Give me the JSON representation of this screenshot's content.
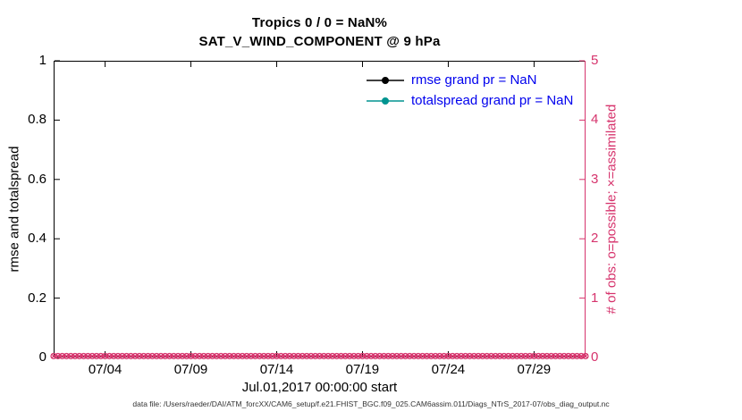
{
  "figure": {
    "title_line1": "Tropics 0 / 0 = NaN%",
    "title_line2": "SAT_V_WIND_COMPONENT @ 9 hPa",
    "xlabel": "Jul.01,2017 00:00:00 start",
    "ylabel_left": "rmse and totalspread",
    "ylabel_right": "# of obs: o=possible; ×=assimilated",
    "caption": "data file: /Users/raeder/DAI/ATM_forcXX/CAM6_setup/f.e21.FHIST_BGC.f09_025.CAM6assim.011/Diags_NTrS_2017-07/obs_diag_output.nc"
  },
  "legend": [
    {
      "label": "rmse grand pr = NaN",
      "color": "#000000"
    },
    {
      "label": "totalspread grand pr = NaN",
      "color": "#009490"
    }
  ],
  "colors": {
    "right_axis": "#d6336c",
    "marker_pink": "#d6336c",
    "legend_text": "#0000ee",
    "axis_black": "#000000"
  },
  "chart_data": {
    "type": "line",
    "title": "Tropics 0 / 0 = NaN%",
    "subtitle": "SAT_V_WIND_COMPONENT @ 9 hPa",
    "xlabel": "Jul.01,2017 00:00:00 start",
    "ylabel_left": "rmse and totalspread",
    "ylabel_right": "# of obs: o=possible; ×=assimilated",
    "grid": false,
    "legend_position": "top-right-inside",
    "x_range_days": [
      0,
      31
    ],
    "x_start_label": "Jul.01,2017 00:00:00",
    "x_tick_days": [
      3,
      8,
      13,
      18,
      23,
      28
    ],
    "x_tick_labels": [
      "07/04",
      "07/09",
      "07/14",
      "07/19",
      "07/24",
      "07/29"
    ],
    "ylim_left": [
      0,
      1
    ],
    "yticks_left": [
      0,
      0.2,
      0.4,
      0.6,
      0.8,
      1
    ],
    "ylim_right": [
      0,
      5
    ],
    "yticks_right": [
      0,
      1,
      2,
      3,
      4,
      5
    ],
    "series": [
      {
        "name": "rmse",
        "grand_pr": "NaN",
        "values": []
      },
      {
        "name": "totalspread",
        "grand_pr": "NaN",
        "values": []
      },
      {
        "name": "obs_possible",
        "marker": "o",
        "axis": "right",
        "value_constant": 0,
        "n_points": 125
      },
      {
        "name": "obs_assimilated",
        "marker": "x",
        "axis": "right",
        "value_constant": 0,
        "n_points": 125
      }
    ]
  }
}
